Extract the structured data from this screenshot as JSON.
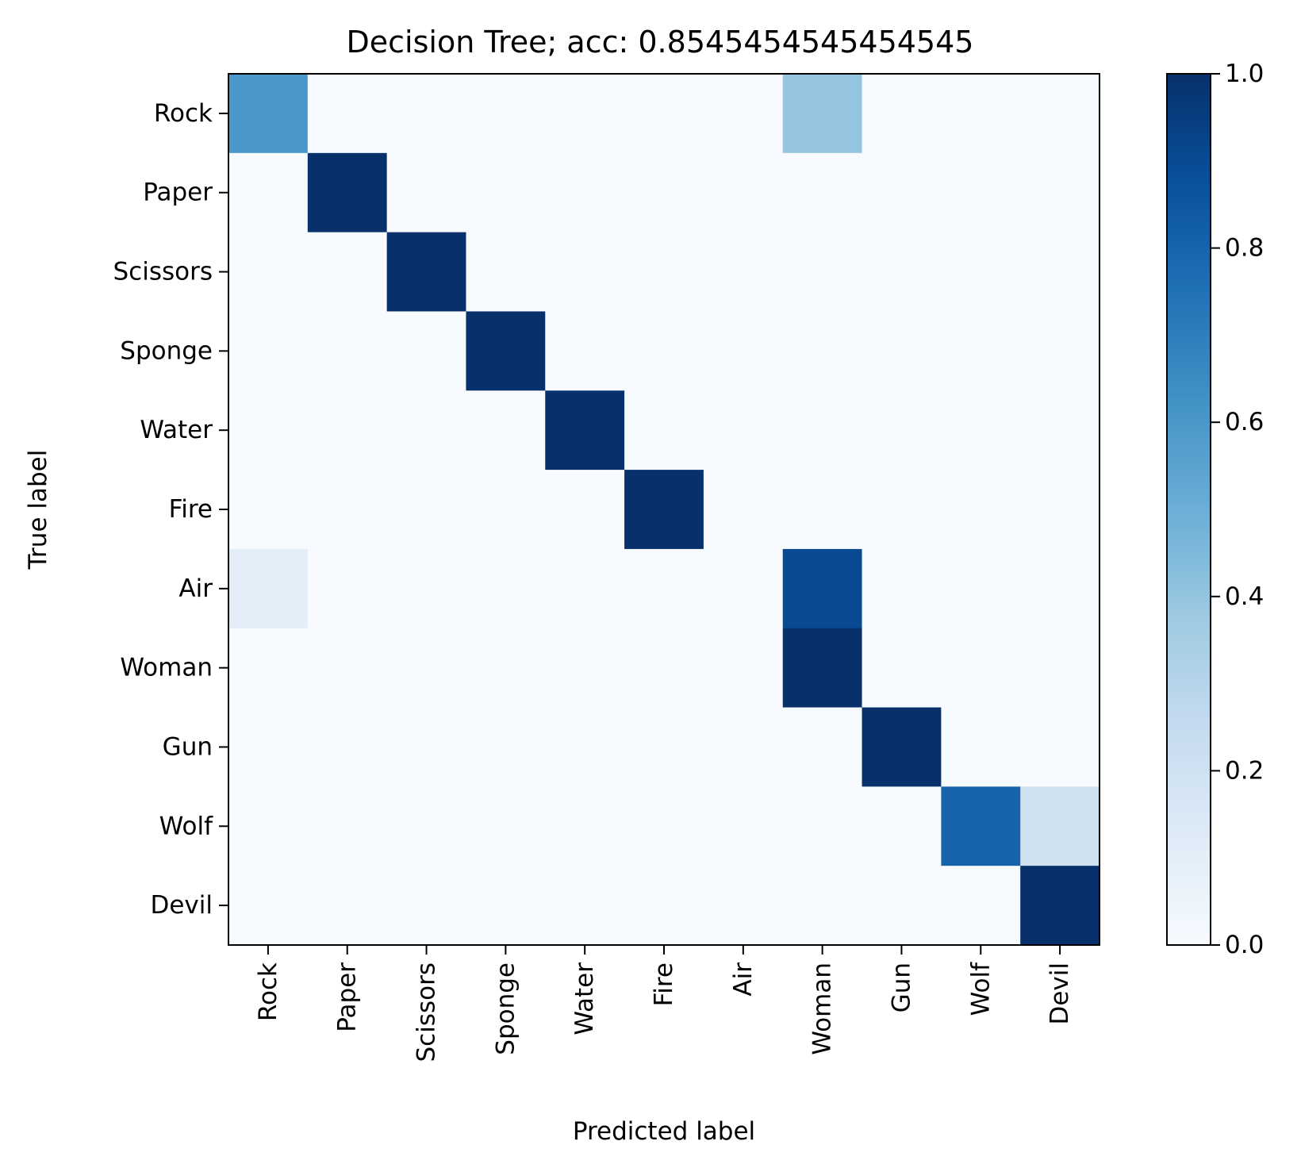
{
  "chart_data": {
    "type": "heatmap",
    "title": "Decision Tree; acc: 0.8545454545454545",
    "xlabel": "Predicted label",
    "ylabel": "True label",
    "x_categories": [
      "Rock",
      "Paper",
      "Scissors",
      "Sponge",
      "Water",
      "Fire",
      "Air",
      "Woman",
      "Gun",
      "Wolf",
      "Devil"
    ],
    "y_categories": [
      "Rock",
      "Paper",
      "Scissors",
      "Sponge",
      "Water",
      "Fire",
      "Air",
      "Woman",
      "Gun",
      "Wolf",
      "Devil"
    ],
    "values": [
      [
        0.6,
        0,
        0,
        0,
        0,
        0,
        0,
        0.4,
        0,
        0,
        0
      ],
      [
        0,
        1,
        0,
        0,
        0,
        0,
        0,
        0,
        0,
        0,
        0
      ],
      [
        0,
        0,
        1,
        0,
        0,
        0,
        0,
        0,
        0,
        0,
        0
      ],
      [
        0,
        0,
        0,
        1,
        0,
        0,
        0,
        0,
        0,
        0,
        0
      ],
      [
        0,
        0,
        0,
        0,
        1,
        0,
        0,
        0,
        0,
        0,
        0
      ],
      [
        0,
        0,
        0,
        0,
        0,
        1,
        0,
        0,
        0,
        0,
        0
      ],
      [
        0.1,
        0,
        0,
        0,
        0,
        0,
        0,
        0.9,
        0,
        0,
        0
      ],
      [
        0,
        0,
        0,
        0,
        0,
        0,
        0,
        1,
        0,
        0,
        0
      ],
      [
        0,
        0,
        0,
        0,
        0,
        0,
        0,
        0,
        1,
        0,
        0
      ],
      [
        0,
        0,
        0,
        0,
        0,
        0,
        0,
        0,
        0,
        0.8,
        0.2
      ],
      [
        0,
        0,
        0,
        0,
        0,
        0,
        0,
        0,
        0,
        0,
        1
      ]
    ],
    "colormap": "Blues",
    "colorbar": {
      "range": [
        0,
        1
      ],
      "ticks": [
        0,
        0.2,
        0.4,
        0.6,
        0.8,
        1.0
      ],
      "tick_labels": [
        "0.0",
        "0.2",
        "0.4",
        "0.6",
        "0.8",
        "1.0"
      ]
    },
    "grid": false
  }
}
